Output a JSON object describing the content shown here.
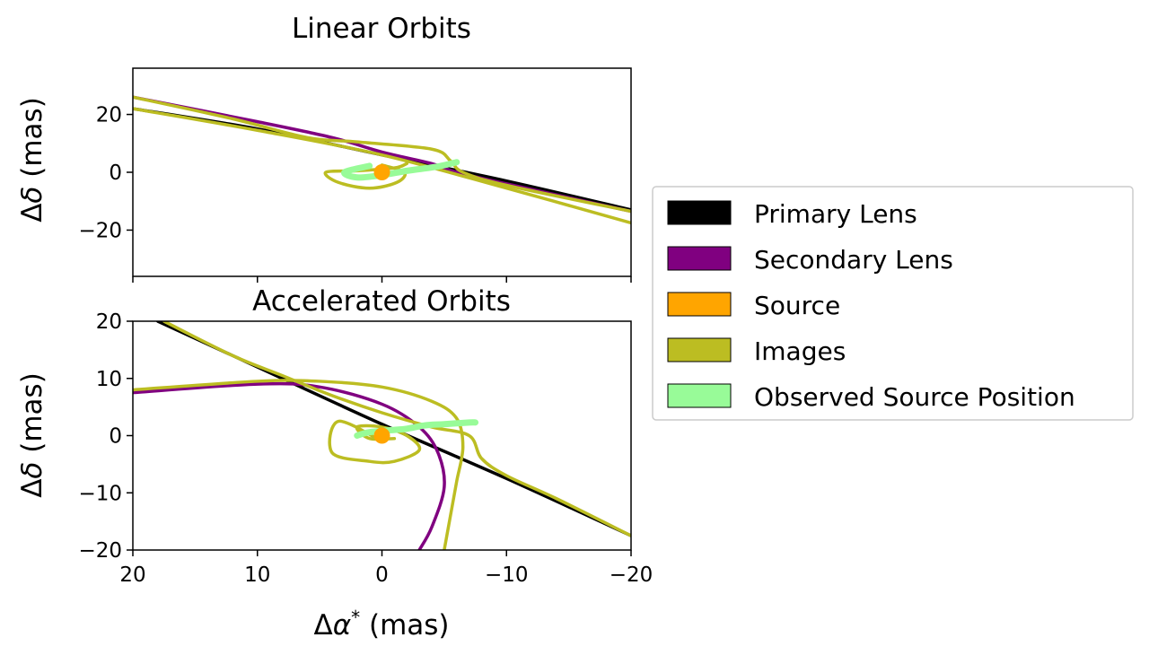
{
  "colors": {
    "primary": "#000000",
    "secondary": "#800080",
    "source": "#ffa500",
    "images": "#bcbd22",
    "observed": "#98fb98"
  },
  "legend": [
    {
      "label": "Primary Lens",
      "color": "#000000"
    },
    {
      "label": " Secondary Lens",
      "color": "#800080"
    },
    {
      "label": "Source",
      "color": "#ffa500"
    },
    {
      "label": "Images",
      "color": "#bcbd22"
    },
    {
      "label": "Observed Source Position",
      "color": "#98fb98"
    }
  ],
  "chart_data": [
    {
      "type": "line",
      "title": "Linear Orbits",
      "xlabel": "",
      "ylabel": "Δδ (mas)",
      "xlim": [
        20,
        -20
      ],
      "ylim": [
        -36,
        36
      ],
      "yticks": [
        20,
        0,
        -20
      ],
      "ytick_labels": [
        "20",
        "0",
        "−20"
      ],
      "series": [
        {
          "name": "Primary Lens",
          "color": "#000000",
          "x": [
            20,
            10,
            0,
            -10,
            -20
          ],
          "y": [
            22,
            15,
            6,
            -3,
            -13
          ]
        },
        {
          "name": "Secondary Lens",
          "color": "#800080",
          "x": [
            20,
            10,
            4,
            0,
            -4,
            -6,
            -10,
            -20
          ],
          "y": [
            26,
            17.5,
            12,
            7,
            3,
            0,
            -4,
            -13.5
          ]
        },
        {
          "name": "Images (upper)",
          "color": "#bcbd22",
          "x": [
            20,
            12,
            6,
            2,
            -4,
            -5.5,
            -6.5,
            -10,
            -20
          ],
          "y": [
            26,
            18.5,
            12,
            10.5,
            8,
            4,
            0,
            -4.5,
            -13.5
          ]
        },
        {
          "name": "Images (lower)",
          "color": "#bcbd22",
          "x": [
            20,
            10,
            0,
            -10,
            -20
          ],
          "y": [
            22,
            14.5,
            6,
            -5.5,
            -17.5
          ]
        },
        {
          "name": "Images (loop)",
          "color": "#bcbd22",
          "x": [
            0,
            -1.8,
            -1.2,
            1,
            3.5,
            4.5,
            2,
            -1,
            -2
          ],
          "y": [
            2.5,
            0,
            -3.5,
            -5.5,
            -3.5,
            0,
            0.5,
            1.5,
            3
          ]
        },
        {
          "name": "Observed Source Position",
          "color": "#98fb98",
          "x": [
            1,
            3,
            2,
            0,
            -2,
            -4.5,
            -6
          ],
          "y": [
            2.2,
            0,
            -1.8,
            -1,
            0.5,
            2,
            3.5
          ]
        },
        {
          "name": "Source",
          "color": "#ffa500",
          "x": [
            0
          ],
          "y": [
            0
          ]
        }
      ]
    },
    {
      "type": "line",
      "title": "Accelerated Orbits",
      "xlabel": "Δα* (mas)",
      "ylabel": "Δδ (mas)",
      "xlim": [
        20,
        -20
      ],
      "ylim": [
        -20,
        20
      ],
      "xticks": [
        20,
        10,
        0,
        -10,
        -20
      ],
      "xtick_labels": [
        "20",
        "10",
        "0",
        "−10",
        "−20"
      ],
      "yticks": [
        20,
        10,
        0,
        -10,
        -20
      ],
      "ytick_labels": [
        "20",
        "10",
        "0",
        "−10",
        "−20"
      ],
      "series": [
        {
          "name": "Primary Lens",
          "color": "#000000",
          "x": [
            18,
            10,
            0,
            -10,
            -20
          ],
          "y": [
            20,
            12,
            2,
            -7.5,
            -17.5
          ]
        },
        {
          "name": "Secondary Lens",
          "color": "#800080",
          "x": [
            20,
            10,
            5,
            0,
            -3,
            -4.5,
            -5,
            -4,
            -3
          ],
          "y": [
            7.5,
            9,
            8.5,
            5.5,
            1.5,
            -3,
            -9,
            -16,
            -20
          ]
        },
        {
          "name": "Images (arc)",
          "color": "#bcbd22",
          "x": [
            20,
            10,
            5,
            0,
            -4,
            -6,
            -6.5,
            -6,
            -5.5,
            -5
          ],
          "y": [
            8,
            9.5,
            9.5,
            8.5,
            6,
            3,
            -2,
            -8,
            -14,
            -20
          ]
        },
        {
          "name": "Images (right)",
          "color": "#bcbd22",
          "x": [
            17.5,
            12,
            8,
            4,
            0,
            -4,
            -7,
            -8,
            -10,
            -14,
            -20
          ],
          "y": [
            20,
            14,
            10.5,
            7,
            4,
            1.5,
            0,
            -4,
            -7,
            -11,
            -17.5
          ]
        },
        {
          "name": "Images (loop)",
          "color": "#bcbd22",
          "x": [
            0,
            3.5,
            4,
            1,
            -1,
            -3,
            -2,
            0,
            2,
            1,
            -1
          ],
          "y": [
            -1,
            2.5,
            -3,
            -4.5,
            -4.5,
            -2.5,
            0,
            1.5,
            1.5,
            -0.5,
            -0.5
          ]
        },
        {
          "name": "Observed Source Position",
          "color": "#98fb98",
          "x": [
            2,
            1,
            -1,
            -2,
            -3.5,
            -5,
            -7,
            -7.5
          ],
          "y": [
            0,
            0.6,
            1,
            1.2,
            1.8,
            2,
            2.3,
            2.3
          ]
        },
        {
          "name": "Source",
          "color": "#ffa500",
          "x": [
            0
          ],
          "y": [
            0
          ]
        }
      ]
    }
  ]
}
